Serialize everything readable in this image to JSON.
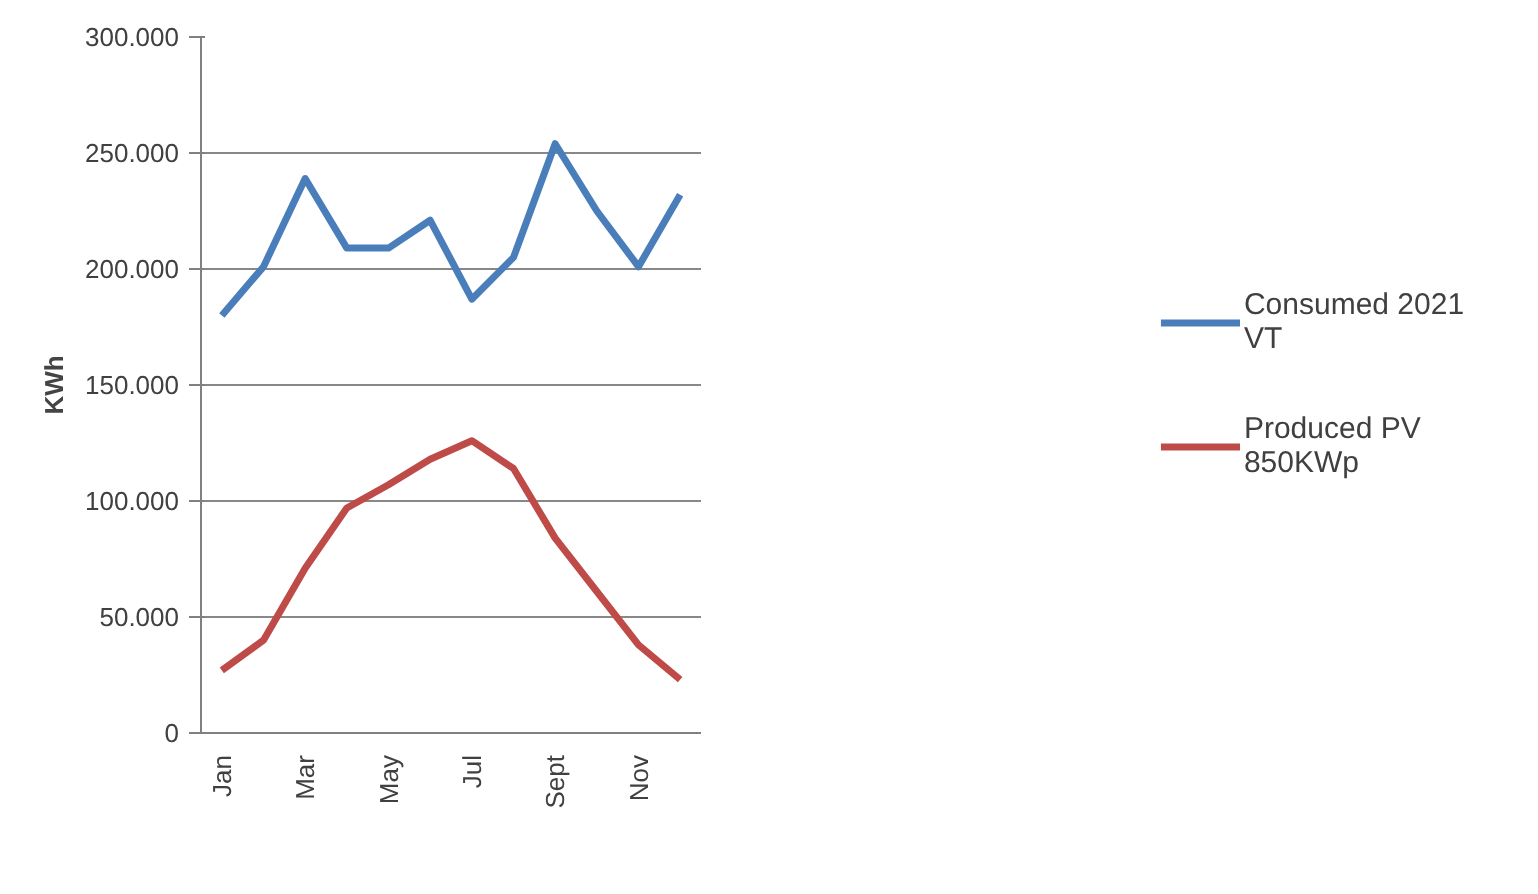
{
  "chart_data": {
    "type": "line",
    "ylabel": "KWh",
    "categories": [
      "Jan",
      null,
      "Mar",
      null,
      "May",
      null,
      "Jul",
      null,
      "Sept",
      null,
      "Nov",
      null
    ],
    "series": [
      {
        "name": "Consumed 2021 VT",
        "color": "#4a7ebb",
        "values": [
          180000,
          201000,
          239000,
          209000,
          209000,
          221000,
          187000,
          205000,
          254000,
          225000,
          201000,
          232000
        ]
      },
      {
        "name": "Produced PV 850KWp",
        "color": "#be4b48",
        "values": [
          27000,
          40000,
          71000,
          97000,
          107000,
          118000,
          126000,
          114000,
          84000,
          61000,
          38000,
          23000
        ]
      }
    ],
    "ylim": [
      0,
      300000
    ],
    "yticks": [
      {
        "value": 0,
        "label": "0"
      },
      {
        "value": 50000,
        "label": "50.000"
      },
      {
        "value": 100000,
        "label": "100.000"
      },
      {
        "value": 150000,
        "label": "150.000"
      },
      {
        "value": 200000,
        "label": "200.000"
      },
      {
        "value": 250000,
        "label": "250.000"
      },
      {
        "value": 300000,
        "label": "300.000"
      }
    ],
    "grid": "y",
    "legend": "right",
    "marker": "none",
    "line_style": "solid"
  }
}
